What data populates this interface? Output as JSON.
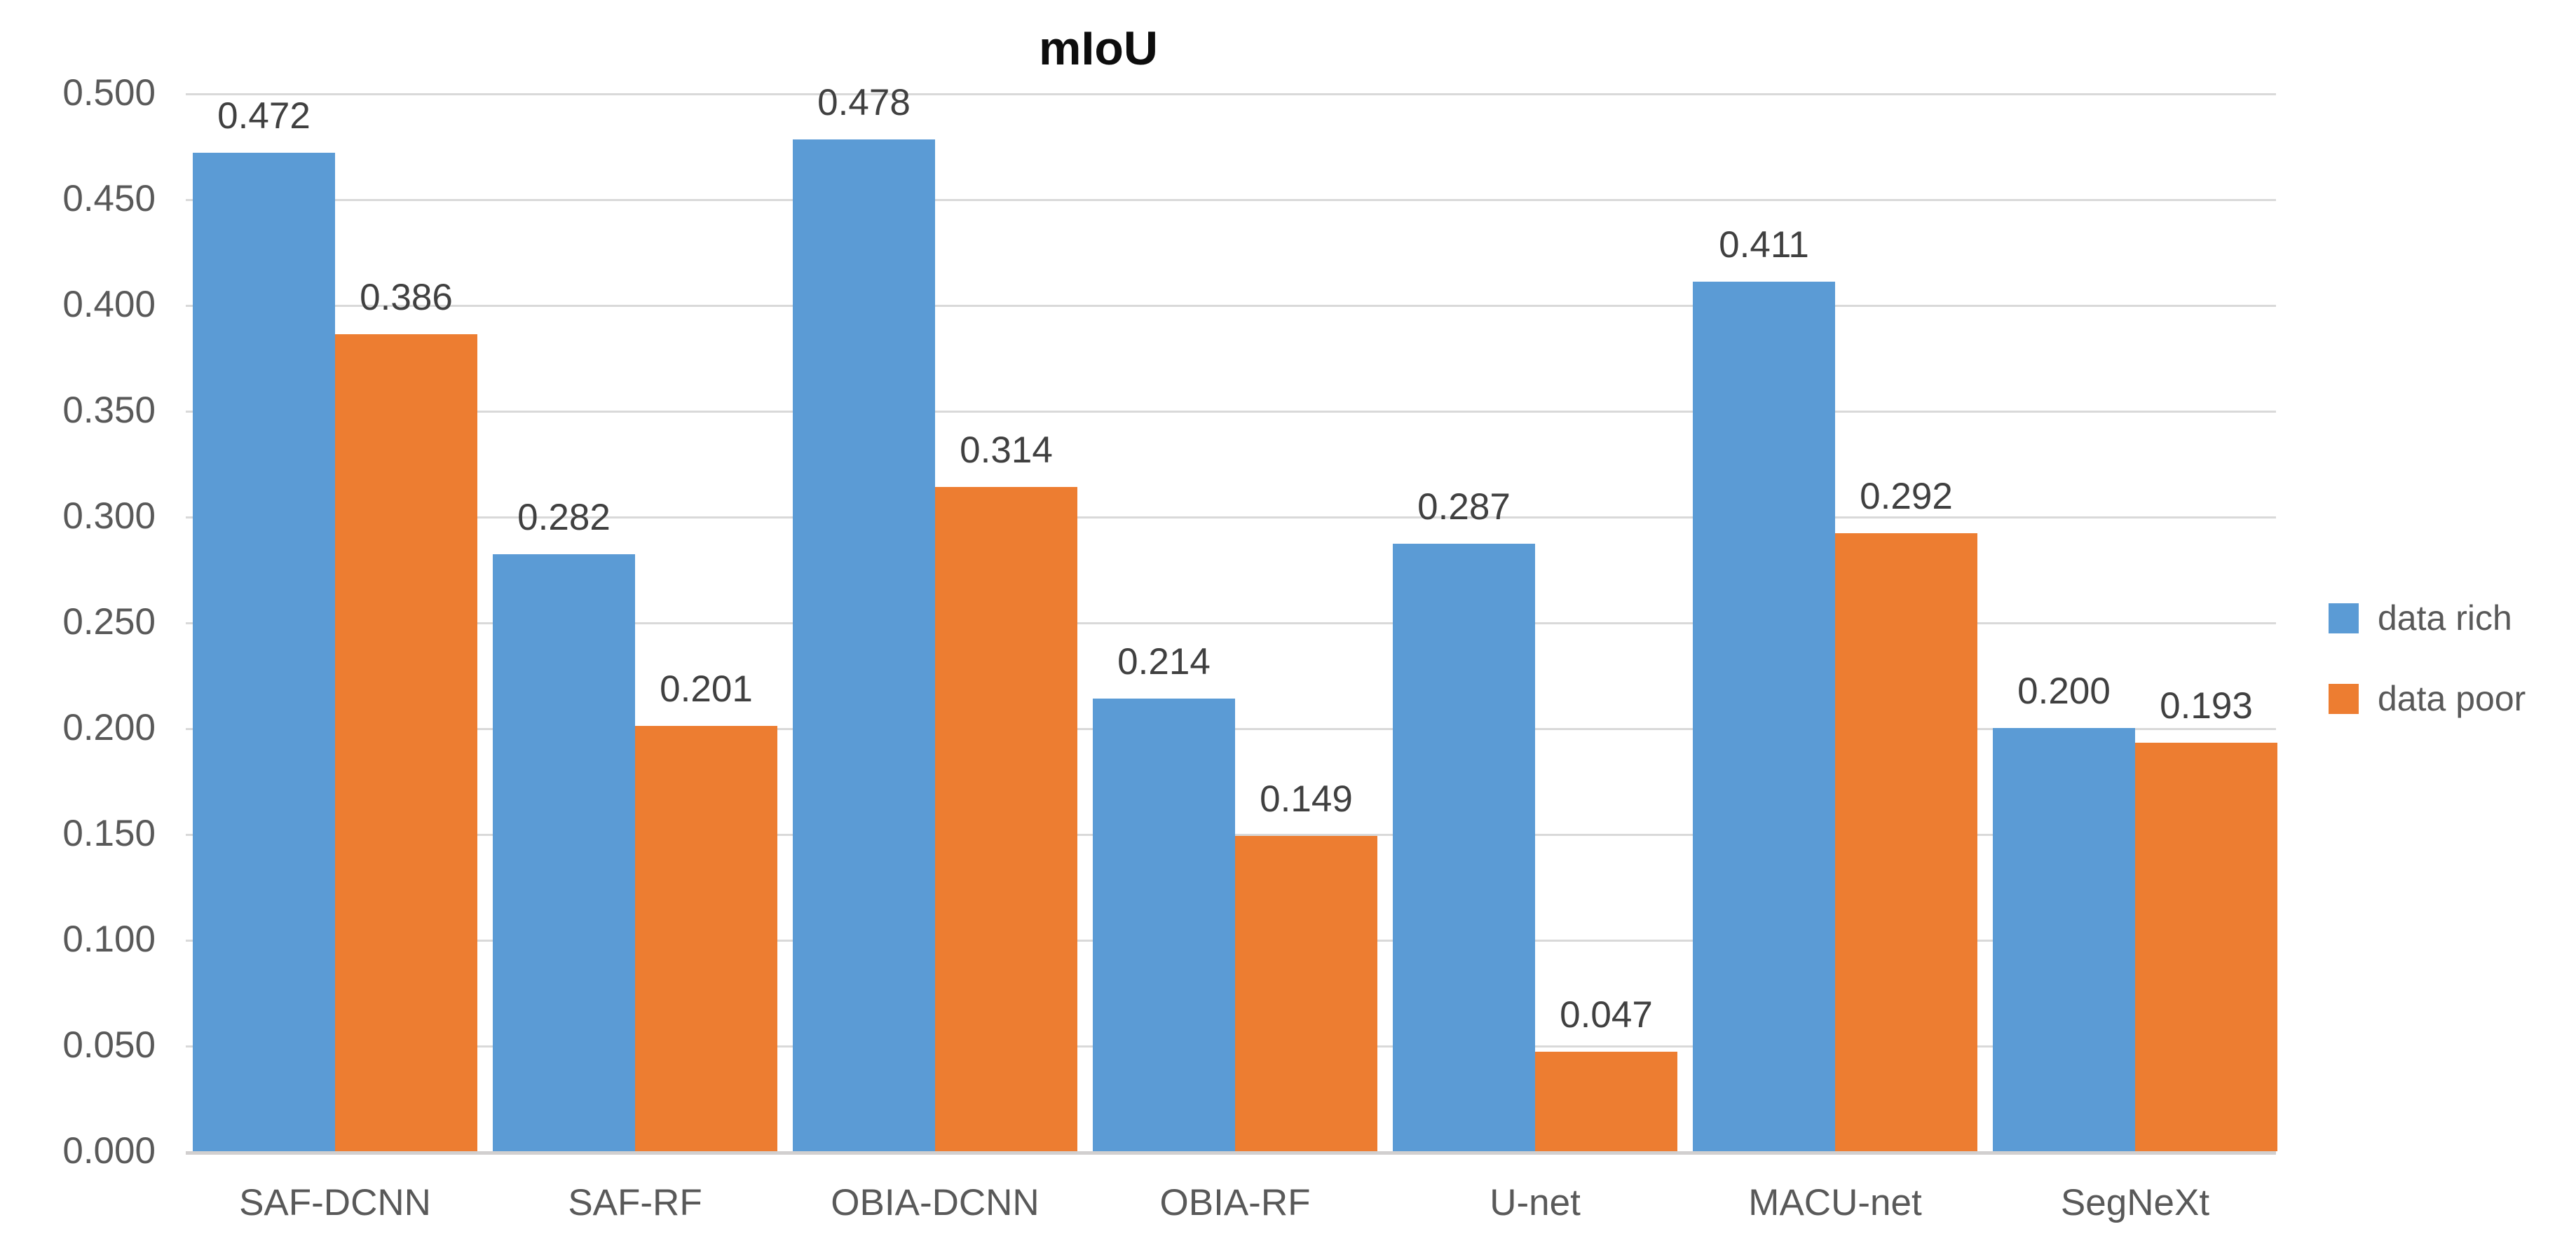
{
  "chart_data": {
    "type": "bar",
    "title": "mIoU",
    "categories": [
      "SAF-DCNN",
      "SAF-RF",
      "OBIA-DCNN",
      "OBIA-RF",
      "U-net",
      "MACU-net",
      "SegNeXt"
    ],
    "series": [
      {
        "name": "data rich",
        "color": "#5B9BD5",
        "values": [
          0.472,
          0.282,
          0.478,
          0.214,
          0.287,
          0.411,
          0.2
        ],
        "data_labels": [
          "0.472",
          "0.282",
          "0.478",
          "0.214",
          "0.287",
          "0.411",
          "0.200"
        ]
      },
      {
        "name": "data poor",
        "color": "#ED7D31",
        "values": [
          0.386,
          0.201,
          0.314,
          0.149,
          0.047,
          0.292,
          0.193
        ],
        "data_labels": [
          "0.386",
          "0.201",
          "0.314",
          "0.149",
          "0.047",
          "0.292",
          "0.193"
        ]
      }
    ],
    "xlabel": "",
    "ylabel": "",
    "ylim": [
      0.0,
      0.5
    ],
    "ytick_step": 0.05,
    "ytick_labels": [
      "0.000",
      "0.050",
      "0.100",
      "0.150",
      "0.200",
      "0.250",
      "0.300",
      "0.350",
      "0.400",
      "0.450",
      "0.500"
    ],
    "grid": true,
    "legend_position": "right",
    "colors": {
      "gridline": "#D9D9D9",
      "axis_line": "#D1CFCF",
      "tick_text": "#595959",
      "data_label_text": "#404040",
      "title_text": "#0D0D0D",
      "background": "#FFFFFF"
    }
  }
}
